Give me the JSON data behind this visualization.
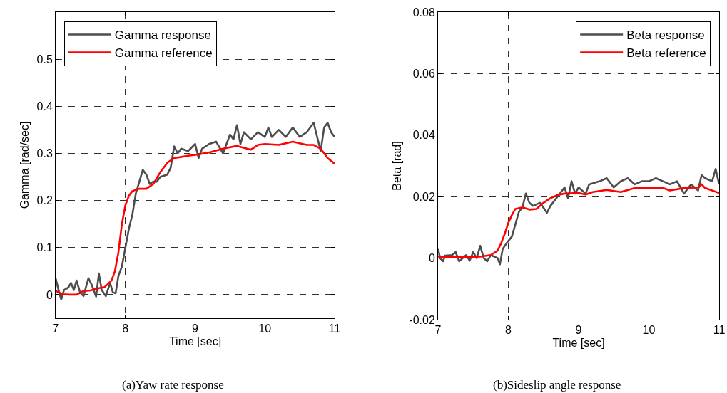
{
  "chart_data": [
    {
      "type": "line",
      "xlabel": "Time [sec]",
      "ylabel": "Gamma [rad/sec]",
      "xlim": [
        7,
        11
      ],
      "xticks": [
        7,
        8,
        9,
        10,
        11
      ],
      "ylim": [
        -0.05,
        0.6
      ],
      "yticks": [
        0,
        0.1,
        0.2,
        0.3,
        0.4,
        0.5
      ],
      "grid": true,
      "legend": "top left",
      "line_style": "solid",
      "annotations": [
        "(a)Yaw rate response"
      ],
      "series": [
        {
          "name": "Gamma response",
          "color": "#4d4d4d",
          "x": [
            7.0,
            7.05,
            7.08,
            7.12,
            7.18,
            7.22,
            7.26,
            7.3,
            7.35,
            7.4,
            7.47,
            7.52,
            7.58,
            7.62,
            7.66,
            7.72,
            7.78,
            7.82,
            7.86,
            7.9,
            7.95,
            8.0,
            8.05,
            8.1,
            8.15,
            8.2,
            8.25,
            8.3,
            8.35,
            8.4,
            8.45,
            8.5,
            8.6,
            8.65,
            8.7,
            8.75,
            8.8,
            8.9,
            9.0,
            9.05,
            9.1,
            9.2,
            9.3,
            9.4,
            9.5,
            9.55,
            9.6,
            9.65,
            9.7,
            9.8,
            9.9,
            10.0,
            10.05,
            10.1,
            10.2,
            10.3,
            10.4,
            10.5,
            10.6,
            10.7,
            10.75,
            10.8,
            10.85,
            10.9,
            10.95,
            11.0
          ],
          "values": [
            0.035,
            0.005,
            -0.01,
            0.01,
            0.015,
            0.025,
            0.01,
            0.03,
            0.005,
            -0.003,
            0.035,
            0.02,
            -0.004,
            0.045,
            0.01,
            -0.003,
            0.025,
            0.005,
            0.003,
            0.04,
            0.06,
            0.1,
            0.14,
            0.17,
            0.215,
            0.24,
            0.265,
            0.255,
            0.235,
            0.24,
            0.24,
            0.25,
            0.255,
            0.27,
            0.315,
            0.3,
            0.31,
            0.305,
            0.32,
            0.29,
            0.31,
            0.32,
            0.325,
            0.3,
            0.34,
            0.33,
            0.36,
            0.32,
            0.345,
            0.33,
            0.345,
            0.335,
            0.355,
            0.335,
            0.35,
            0.335,
            0.355,
            0.335,
            0.345,
            0.365,
            0.335,
            0.305,
            0.355,
            0.365,
            0.345,
            0.335
          ]
        },
        {
          "name": "Gamma reference",
          "color": "#ff0000",
          "x": [
            7.0,
            7.1,
            7.2,
            7.3,
            7.4,
            7.5,
            7.6,
            7.7,
            7.8,
            7.85,
            7.9,
            7.95,
            8.0,
            8.05,
            8.1,
            8.2,
            8.3,
            8.4,
            8.5,
            8.6,
            8.7,
            8.9,
            9.0,
            9.2,
            9.4,
            9.6,
            9.8,
            9.9,
            10.0,
            10.2,
            10.4,
            10.6,
            10.7,
            10.8,
            10.9,
            11.0
          ],
          "values": [
            0.008,
            0.001,
            0,
            0,
            0.008,
            0.009,
            0.013,
            0.016,
            0.03,
            0.05,
            0.09,
            0.15,
            0.19,
            0.21,
            0.22,
            0.225,
            0.225,
            0.235,
            0.26,
            0.28,
            0.29,
            0.295,
            0.297,
            0.302,
            0.31,
            0.316,
            0.308,
            0.318,
            0.32,
            0.318,
            0.325,
            0.318,
            0.318,
            0.31,
            0.29,
            0.278
          ]
        }
      ]
    },
    {
      "type": "line",
      "xlabel": "Time [sec]",
      "ylabel": "Beta [rad]",
      "xlim": [
        7,
        11
      ],
      "xticks": [
        7,
        8,
        9,
        10,
        11
      ],
      "ylim": [
        -0.02,
        0.08
      ],
      "yticks": [
        -0.02,
        0,
        0.02,
        0.04,
        0.06,
        0.08
      ],
      "grid": true,
      "legend": "top right",
      "line_style": "solid",
      "annotations": [
        "(b)Sideslip angle response"
      ],
      "series": [
        {
          "name": "Beta response",
          "color": "#4d4d4d",
          "x": [
            7.0,
            7.03,
            7.07,
            7.1,
            7.2,
            7.25,
            7.3,
            7.4,
            7.45,
            7.5,
            7.55,
            7.6,
            7.65,
            7.7,
            7.75,
            7.85,
            7.88,
            7.92,
            7.98,
            8.05,
            8.1,
            8.15,
            8.2,
            8.25,
            8.3,
            8.35,
            8.45,
            8.55,
            8.6,
            8.7,
            8.8,
            8.85,
            8.9,
            8.95,
            9.0,
            9.1,
            9.15,
            9.3,
            9.4,
            9.5,
            9.6,
            9.7,
            9.8,
            9.9,
            10.0,
            10.1,
            10.2,
            10.3,
            10.4,
            10.45,
            10.5,
            10.6,
            10.7,
            10.75,
            10.8,
            10.9,
            10.95,
            11.0
          ],
          "values": [
            0.003,
            0.0,
            -0.001,
            0.0008,
            0.001,
            0.002,
            -0.001,
            0.001,
            -0.0008,
            0.002,
            0.0,
            0.004,
            0.0,
            -0.001,
            0.001,
            0.0,
            -0.002,
            0.003,
            0.005,
            0.007,
            0.011,
            0.015,
            0.0165,
            0.021,
            0.018,
            0.017,
            0.018,
            0.0148,
            0.017,
            0.02,
            0.023,
            0.0195,
            0.025,
            0.021,
            0.023,
            0.021,
            0.024,
            0.025,
            0.026,
            0.023,
            0.025,
            0.026,
            0.024,
            0.025,
            0.025,
            0.026,
            0.025,
            0.024,
            0.025,
            0.023,
            0.021,
            0.024,
            0.022,
            0.027,
            0.026,
            0.025,
            0.029,
            0.024
          ]
        },
        {
          "name": "Beta reference",
          "color": "#ff0000",
          "x": [
            7.0,
            7.3,
            7.6,
            7.75,
            7.85,
            7.9,
            7.95,
            8.0,
            8.05,
            8.1,
            8.2,
            8.3,
            8.4,
            8.5,
            8.6,
            8.7,
            8.8,
            9.0,
            9.1,
            9.2,
            9.4,
            9.6,
            9.8,
            10.0,
            10.2,
            10.3,
            10.5,
            10.7,
            10.75,
            10.8,
            11.0
          ],
          "values": [
            0.0005,
            0.0003,
            0.0005,
            0.001,
            0.0025,
            0.005,
            0.008,
            0.0115,
            0.014,
            0.016,
            0.0165,
            0.0158,
            0.016,
            0.018,
            0.0195,
            0.0205,
            0.021,
            0.0212,
            0.0207,
            0.0215,
            0.0222,
            0.0215,
            0.0228,
            0.0228,
            0.0228,
            0.022,
            0.0228,
            0.023,
            0.024,
            0.0228,
            0.0212
          ]
        }
      ]
    }
  ]
}
